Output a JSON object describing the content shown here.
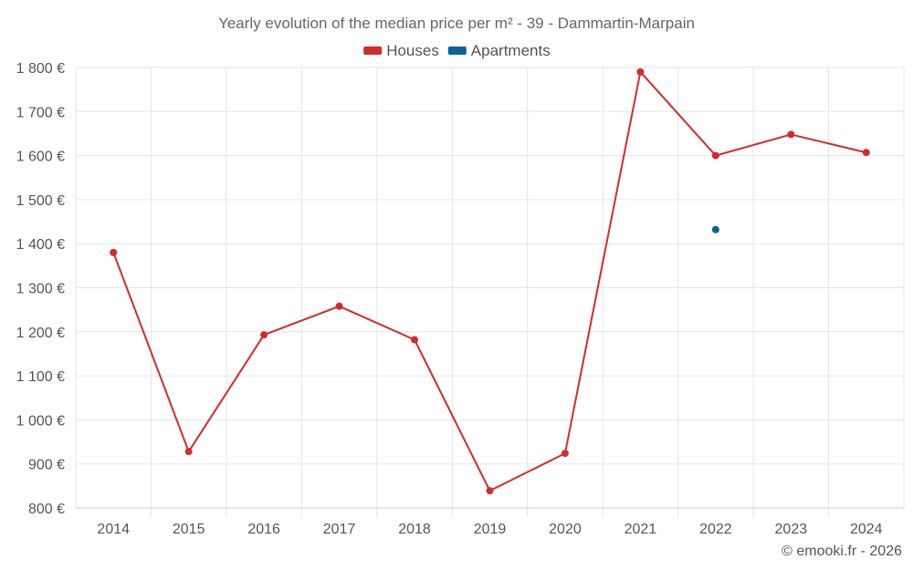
{
  "chart_data": {
    "type": "line",
    "title": "Yearly evolution of the median price per m² - 39 - Dammartin-Marpain",
    "xlabel": "",
    "ylabel": "",
    "categories": [
      "2014",
      "2015",
      "2016",
      "2017",
      "2018",
      "2019",
      "2020",
      "2021",
      "2022",
      "2023",
      "2024"
    ],
    "series": [
      {
        "name": "Houses",
        "color": "#d42a2a",
        "values": [
          1380,
          928,
          1193,
          1258,
          1182,
          839,
          924,
          1790,
          1600,
          1648,
          1607
        ]
      },
      {
        "name": "Apartments",
        "color": "#0a6496",
        "values": [
          null,
          null,
          null,
          null,
          null,
          null,
          null,
          null,
          1432,
          null,
          null
        ]
      }
    ],
    "ylim": [
      800,
      1800
    ],
    "yticks": [
      800,
      900,
      1000,
      1100,
      1200,
      1300,
      1400,
      1500,
      1600,
      1700,
      1800
    ],
    "ytick_labels": [
      "800 €",
      "900 €",
      "1 000 €",
      "1 100 €",
      "1 200 €",
      "1 300 €",
      "1 400 €",
      "1 500 €",
      "1 600 €",
      "1 700 €",
      "1 800 €"
    ],
    "grid": true,
    "legend_position": "top-center"
  },
  "credit": "© emooki.fr - 2026"
}
